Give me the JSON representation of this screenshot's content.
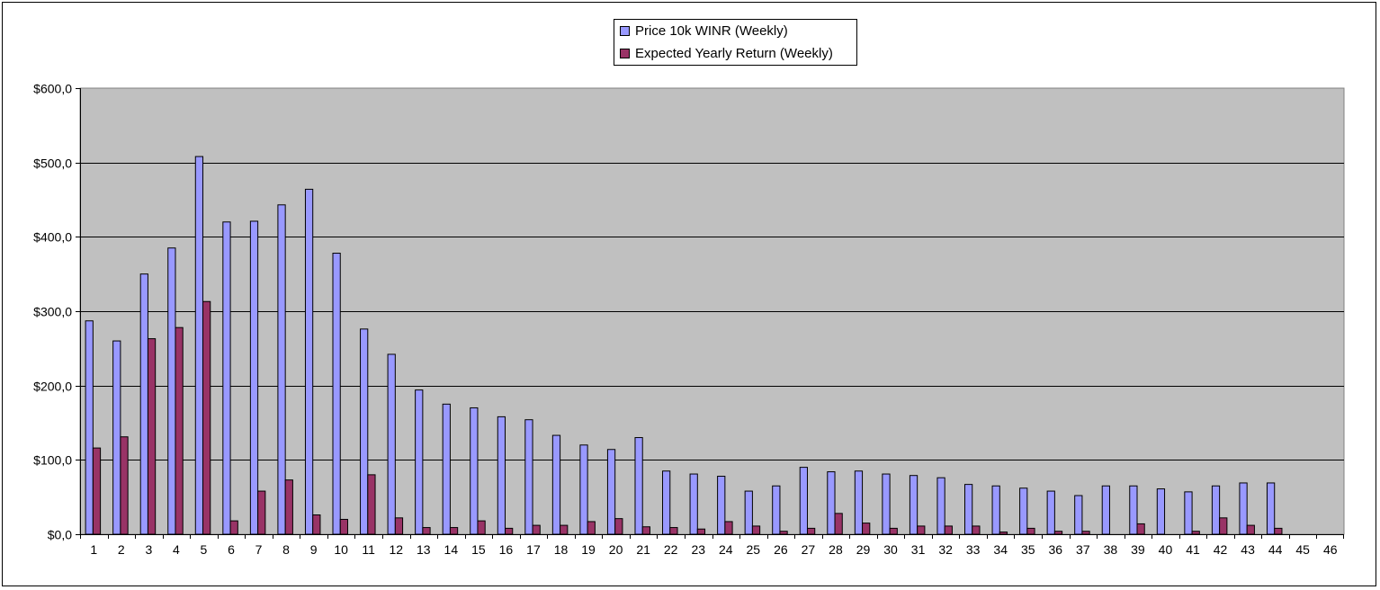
{
  "chart_data": {
    "type": "bar",
    "title": "",
    "xlabel": "",
    "ylabel": "",
    "ylim": [
      0,
      600
    ],
    "yticks": [
      {
        "value": 0,
        "label": "$0,0"
      },
      {
        "value": 100,
        "label": "$100,0"
      },
      {
        "value": 200,
        "label": "$200,0"
      },
      {
        "value": 300,
        "label": "$300,0"
      },
      {
        "value": 400,
        "label": "$400,0"
      },
      {
        "value": 500,
        "label": "$500,0"
      },
      {
        "value": 600,
        "label": "$600,0"
      }
    ],
    "grid": true,
    "legend_position": "top-center",
    "plot_background": "#C0C0C0",
    "categories": [
      "1",
      "2",
      "3",
      "4",
      "5",
      "6",
      "7",
      "8",
      "9",
      "10",
      "11",
      "12",
      "13",
      "14",
      "15",
      "16",
      "17",
      "18",
      "19",
      "20",
      "21",
      "22",
      "23",
      "24",
      "25",
      "26",
      "27",
      "28",
      "29",
      "30",
      "31",
      "32",
      "33",
      "34",
      "35",
      "36",
      "37",
      "38",
      "39",
      "40",
      "41",
      "42",
      "43",
      "44",
      "45",
      "46"
    ],
    "series": [
      {
        "name": "Price 10k WINR (Weekly)",
        "color": "#9999FF",
        "values": [
          287,
          260,
          350,
          385,
          508,
          420,
          421,
          443,
          464,
          378,
          276,
          242,
          194,
          175,
          170,
          158,
          154,
          133,
          120,
          114,
          130,
          85,
          81,
          78,
          58,
          65,
          90,
          84,
          85,
          81,
          79,
          76,
          67,
          65,
          62,
          58,
          52,
          65,
          65,
          61,
          57,
          65,
          69,
          69,
          null,
          null
        ]
      },
      {
        "name": "Expected Yearly Return (Weekly)",
        "color": "#993366",
        "values": [
          116,
          131,
          263,
          278,
          313,
          18,
          58,
          73,
          26,
          20,
          80,
          22,
          9,
          9,
          18,
          8,
          12,
          12,
          17,
          21,
          10,
          9,
          7,
          17,
          11,
          4,
          8,
          28,
          15,
          8,
          11,
          11,
          11,
          3,
          8,
          4,
          4,
          0,
          14,
          0,
          4,
          22,
          12,
          8,
          null,
          null
        ]
      }
    ]
  }
}
